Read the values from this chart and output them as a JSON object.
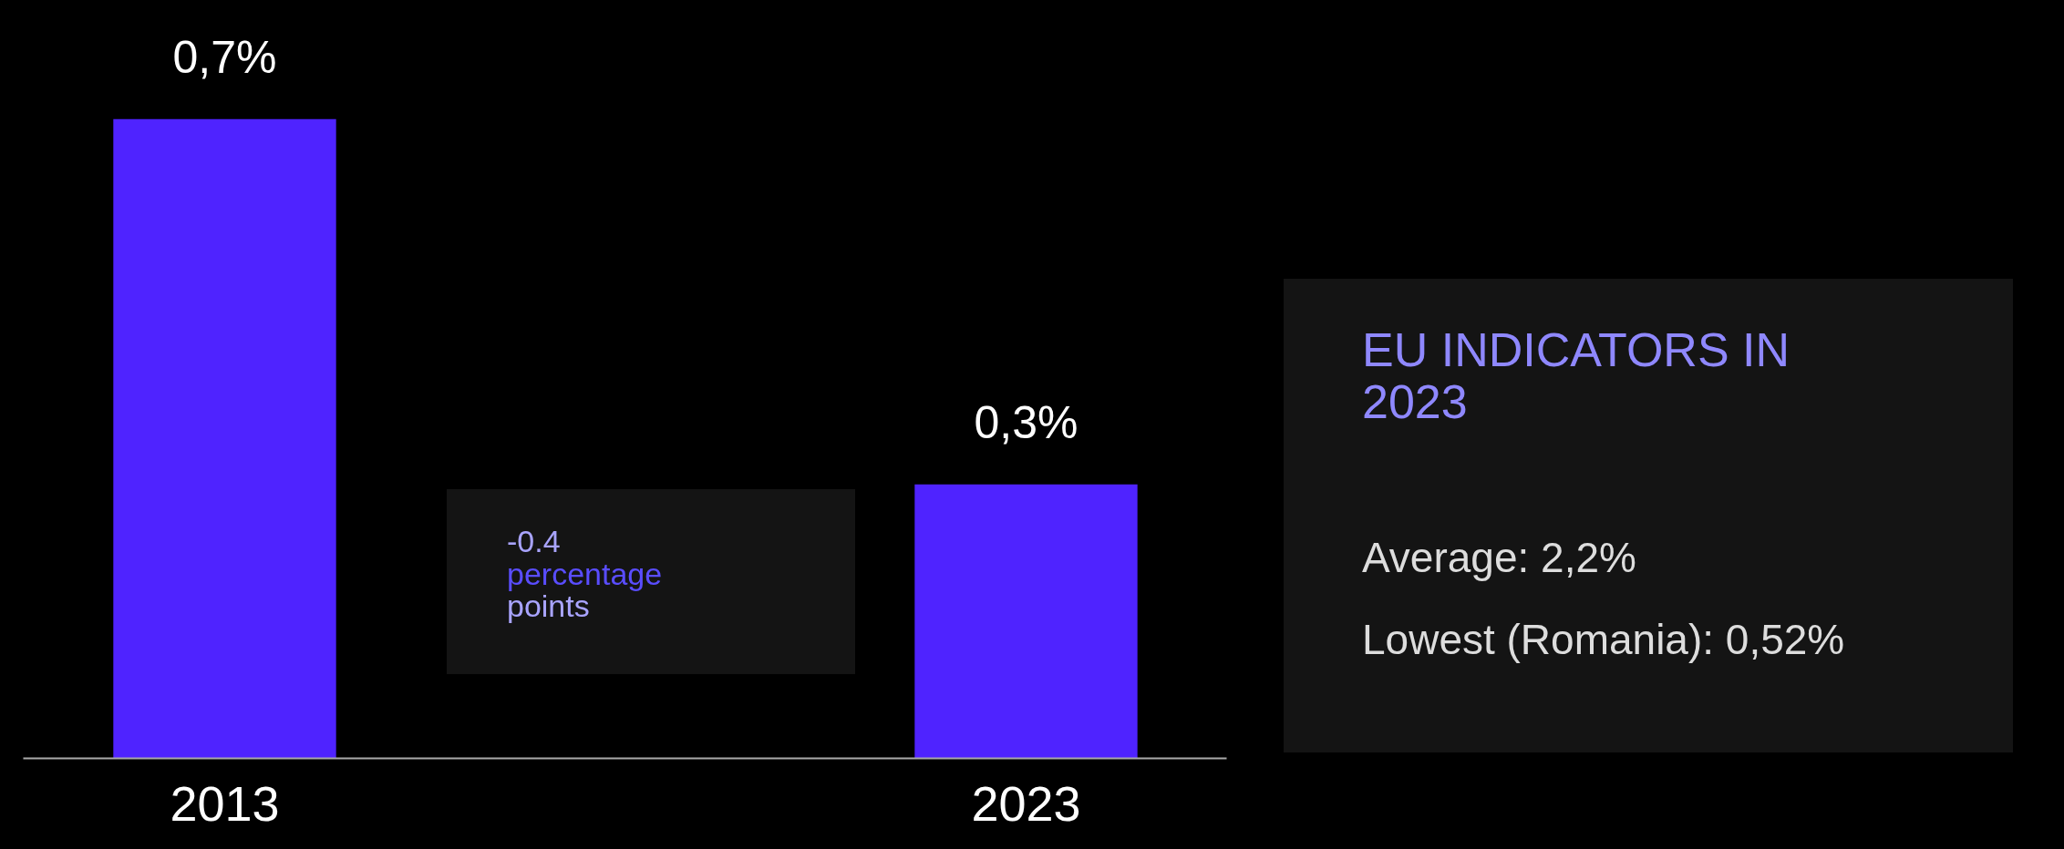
{
  "chart_data": {
    "type": "bar",
    "categories": [
      "2013",
      "2023"
    ],
    "values": [
      0.7,
      0.3
    ],
    "value_labels": [
      "0,7%",
      "0,3%"
    ],
    "color": "#4f23ff",
    "grid": false,
    "annotations": [
      "-0.4 percentage points",
      "EU INDICATORS IN 2023",
      "Average: 2,2%",
      "Lowest (Romania): 0,52%"
    ]
  }
}
